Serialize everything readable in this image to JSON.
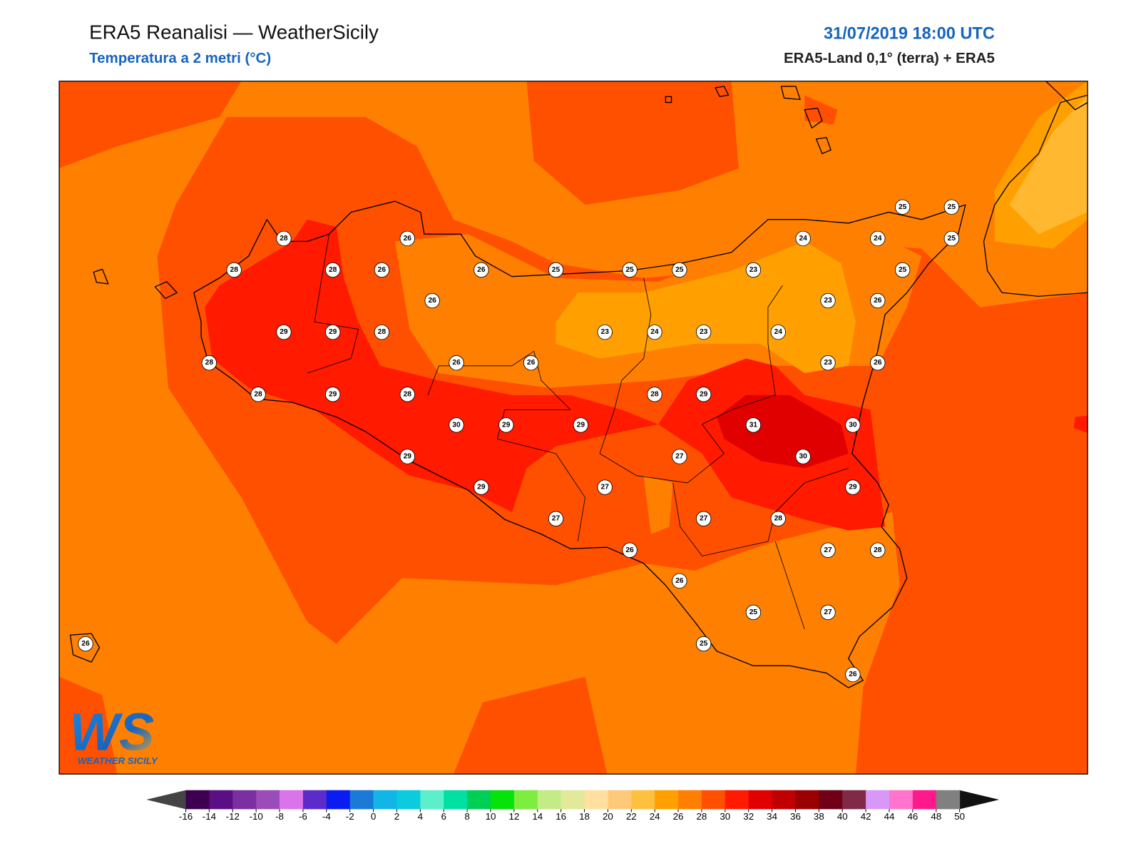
{
  "header": {
    "title": "ERA5 Reanalisi — WeatherSicily",
    "subtitle": "Temperatura a 2 metri (°C)",
    "date": "31/07/2019 18:00 UTC",
    "source": "ERA5-Land 0,1° (terra) + ERA5"
  },
  "stations": [
    28,
    26,
    28,
    28,
    26,
    26,
    25,
    25,
    25,
    23,
    24,
    24,
    25,
    25,
    25,
    25,
    26,
    23,
    26,
    29,
    29,
    28,
    23,
    24,
    23,
    24,
    28,
    26,
    26,
    23,
    26,
    28,
    29,
    28,
    28,
    29,
    30,
    29,
    29,
    31,
    30,
    29,
    27,
    30,
    29,
    27,
    29,
    27,
    27,
    28,
    26,
    27,
    28,
    26,
    25,
    27,
    26,
    25,
    26
  ],
  "colorbar": {
    "ticks": [
      -16,
      -14,
      -12,
      -10,
      -8,
      -6,
      -4,
      -2,
      0,
      2,
      4,
      6,
      8,
      10,
      12,
      14,
      16,
      18,
      20,
      22,
      24,
      26,
      28,
      30,
      32,
      34,
      36,
      38,
      40,
      42,
      44,
      46,
      48,
      50
    ],
    "colors": [
      "#3d0050",
      "#5c0f84",
      "#7b2fa0",
      "#9c4cb9",
      "#da74ea",
      "#5b2cc9",
      "#0a1cf2",
      "#1b7ad6",
      "#12b6e6",
      "#0acbe0",
      "#5bf0c9",
      "#00e0a3",
      "#00cf55",
      "#05e30a",
      "#7ded3f",
      "#c3ec86",
      "#e2e99b",
      "#ffe0a0",
      "#ffca78",
      "#ffc040",
      "#ffa000",
      "#ff8000",
      "#ff5000",
      "#ff1a00",
      "#e00000",
      "#c00000",
      "#9a0000",
      "#6e0018",
      "#802a48",
      "#d898f8",
      "#ff74cc",
      "#ff1a8c",
      "#808080"
    ],
    "under_color": "#444444",
    "over_color": "#111111"
  },
  "logo": {
    "mark": "WS",
    "name": "WEATHER SICILY"
  }
}
